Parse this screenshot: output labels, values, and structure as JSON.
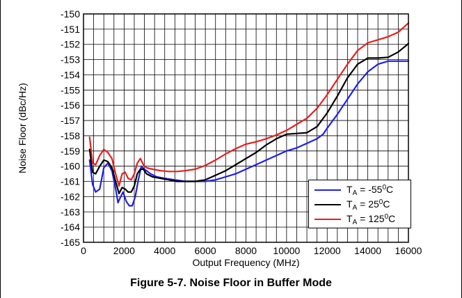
{
  "caption": "Figure 5-7. Noise Floor in Buffer Mode",
  "chart_data": {
    "type": "line",
    "title": "",
    "xlabel": "Output Frequency (MHz)",
    "ylabel": "Noise Floor (dBc/Hz)",
    "xlim": [
      0,
      16000
    ],
    "ylim": [
      -165,
      -150
    ],
    "xticks": [
      0,
      2000,
      4000,
      6000,
      8000,
      10000,
      12000,
      14000,
      16000
    ],
    "yticks": [
      -150,
      -151,
      -152,
      -153,
      -154,
      -155,
      -156,
      -157,
      -158,
      -159,
      -160,
      -161,
      -162,
      -163,
      -164,
      -165
    ],
    "grid": true,
    "legend_position": "bottom-right",
    "legend": [
      {
        "prefix": "T",
        "sub": "A",
        "mid": " = -55",
        "sup": "0",
        "suffix": "C",
        "color": "#1f1fe6"
      },
      {
        "prefix": "T",
        "sub": "A",
        "mid": " = 25",
        "sup": "0",
        "suffix": "C",
        "color": "#000000"
      },
      {
        "prefix": "T",
        "sub": "A",
        "mid": " = 125",
        "sup": "0",
        "suffix": "C",
        "color": "#e61e1e"
      }
    ],
    "series": [
      {
        "name": "TA = -55°C",
        "color": "#1f1fe6",
        "x": [
          300,
          450,
          600,
          800,
          1000,
          1200,
          1400,
          1600,
          1700,
          1800,
          1950,
          2100,
          2250,
          2400,
          2550,
          2700,
          2850,
          3000,
          3300,
          3600,
          4000,
          4500,
          5000,
          5500,
          6000,
          6500,
          7000,
          7500,
          8000,
          8500,
          9000,
          9500,
          10000,
          10500,
          11000,
          11500,
          11800,
          12000,
          12500,
          13000,
          13500,
          14000,
          14500,
          15000,
          15500,
          16000
        ],
        "y": [
          -159.6,
          -161.2,
          -161.7,
          -161.5,
          -160.1,
          -159.8,
          -160.3,
          -161.6,
          -162.4,
          -162.1,
          -161.7,
          -162.3,
          -162.6,
          -162.6,
          -162.0,
          -160.9,
          -160.0,
          -160.2,
          -160.5,
          -160.7,
          -160.8,
          -160.9,
          -161.0,
          -161.0,
          -161.0,
          -160.9,
          -160.7,
          -160.5,
          -160.2,
          -159.9,
          -159.6,
          -159.3,
          -159.0,
          -158.8,
          -158.5,
          -158.2,
          -157.9,
          -157.5,
          -156.6,
          -155.6,
          -154.6,
          -153.8,
          -153.3,
          -153.1,
          -153.1,
          -153.1
        ]
      },
      {
        "name": "TA = 25°C",
        "color": "#000000",
        "x": [
          300,
          450,
          600,
          800,
          1000,
          1200,
          1400,
          1600,
          1750,
          1900,
          2050,
          2200,
          2350,
          2500,
          2650,
          2800,
          2950,
          3100,
          3400,
          3800,
          4200,
          4600,
          5000,
          5500,
          6000,
          6500,
          7000,
          7500,
          8000,
          8500,
          9000,
          9500,
          10000,
          10500,
          11000,
          11500,
          12000,
          12500,
          13000,
          13500,
          14000,
          14500,
          15000,
          15500,
          16000
        ],
        "y": [
          -158.9,
          -160.4,
          -160.5,
          -160.0,
          -159.6,
          -159.7,
          -160.1,
          -161.1,
          -161.8,
          -161.4,
          -161.5,
          -161.7,
          -161.7,
          -161.3,
          -160.5,
          -160.2,
          -160.2,
          -160.5,
          -160.7,
          -160.8,
          -160.9,
          -161.0,
          -161.0,
          -161.0,
          -160.9,
          -160.6,
          -160.3,
          -159.9,
          -159.5,
          -159.1,
          -158.6,
          -158.2,
          -157.9,
          -157.85,
          -157.8,
          -157.4,
          -156.5,
          -155.4,
          -154.2,
          -153.3,
          -152.9,
          -152.9,
          -152.85,
          -152.5,
          -151.95
        ]
      },
      {
        "name": "TA = 125°C",
        "color": "#e61e1e",
        "x": [
          300,
          450,
          600,
          800,
          1000,
          1200,
          1400,
          1600,
          1750,
          1900,
          2050,
          2200,
          2350,
          2500,
          2650,
          2800,
          2950,
          3100,
          3400,
          3800,
          4200,
          4600,
          5000,
          5500,
          6000,
          6500,
          7000,
          7500,
          8000,
          8500,
          9000,
          9500,
          10000,
          10500,
          11000,
          11500,
          12000,
          12500,
          13000,
          13500,
          14000,
          14500,
          15000,
          15500,
          16000
        ],
        "y": [
          -158.1,
          -159.8,
          -159.9,
          -159.3,
          -158.9,
          -159.1,
          -159.5,
          -160.6,
          -161.3,
          -160.5,
          -160.4,
          -160.8,
          -160.9,
          -160.5,
          -159.8,
          -159.5,
          -159.9,
          -160.1,
          -160.2,
          -160.3,
          -160.35,
          -160.35,
          -160.3,
          -160.2,
          -159.95,
          -159.6,
          -159.2,
          -158.85,
          -158.55,
          -158.4,
          -158.2,
          -157.95,
          -157.65,
          -157.25,
          -156.85,
          -156.2,
          -155.3,
          -154.3,
          -153.3,
          -152.4,
          -151.9,
          -151.7,
          -151.5,
          -151.2,
          -150.6
        ]
      }
    ]
  }
}
